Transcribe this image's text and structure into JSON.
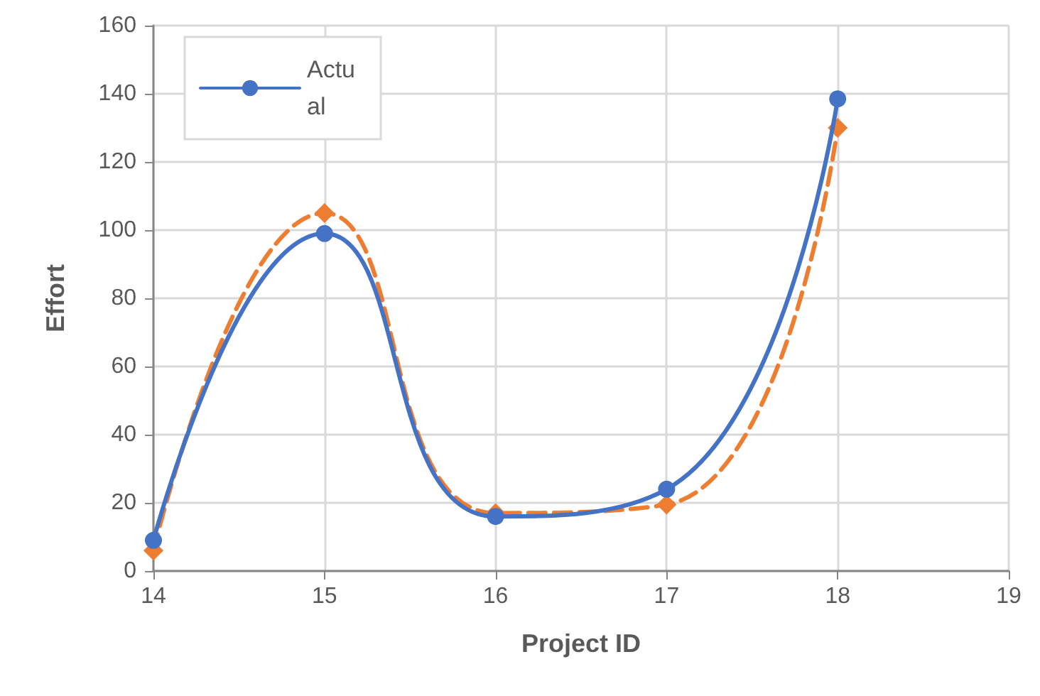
{
  "chart_data": {
    "type": "line",
    "xlabel": "Project ID",
    "ylabel": "Effort",
    "x": [
      14,
      15,
      16,
      17,
      18
    ],
    "series": [
      {
        "name": "Actual",
        "color": "#4472c4",
        "values": [
          9,
          99,
          16,
          24,
          138.5
        ],
        "marker": "circle",
        "line_style": "solid"
      },
      {
        "color": "#ed7d31",
        "values": [
          6,
          105,
          17,
          19.5,
          130
        ],
        "marker": "diamond",
        "line_style": "dashed"
      }
    ],
    "xlim": [
      14,
      19
    ],
    "xticks": [
      14,
      15,
      16,
      17,
      18,
      19
    ],
    "ylim": [
      0,
      160
    ],
    "yticks": [
      0,
      20,
      40,
      60,
      80,
      100,
      120,
      140,
      160
    ],
    "grid": true,
    "legend": "top left"
  }
}
